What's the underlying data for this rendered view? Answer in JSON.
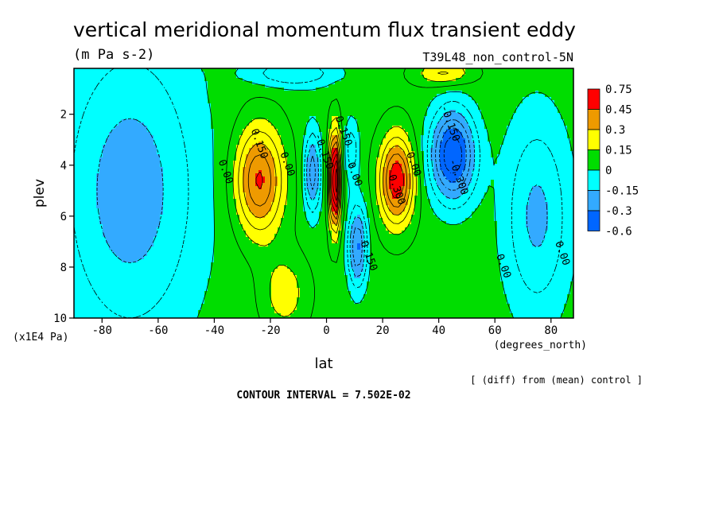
{
  "chart_data": {
    "type": "contour",
    "title": "vertical meridional momentum flux transient eddy",
    "units": "(m Pa s-2)",
    "run_label": "T39L48_non_control-5N",
    "xlabel": "lat",
    "x_units": "(degrees_north)",
    "ylabel": "plev",
    "y_units": "(x1E4 Pa)",
    "xlim": [
      -90,
      88
    ],
    "ylim": [
      10,
      0.2
    ],
    "x_ticks": [
      -80,
      -60,
      -40,
      -20,
      0,
      20,
      40,
      60,
      80
    ],
    "y_ticks": [
      2,
      4,
      6,
      8,
      10
    ],
    "diff_note": "[ (diff) from (mean) control ]",
    "contour_interval": "CONTOUR INTERVAL = 7.502E-02",
    "legend": {
      "levels": [
        "0.75",
        "0.45",
        "0.3",
        "0.15",
        "0",
        "-0.15",
        "-0.3",
        "-0.6"
      ],
      "colors": [
        "#ff0000",
        "#ee9a00",
        "#ffff00",
        "#00dd00",
        "#00ffff",
        "#33aaff",
        "#0066ff"
      ]
    },
    "contour_labels": [
      {
        "text": "0.00",
        "lat": -37,
        "plev": 4.3
      },
      {
        "text": "0.150",
        "lat": -25,
        "plev": 3.2
      },
      {
        "text": "0.00",
        "lat": -15,
        "plev": 4.0
      },
      {
        "text": "-0.150",
        "lat": -2,
        "plev": 3.5
      },
      {
        "text": "0.150",
        "lat": 5,
        "plev": 2.7
      },
      {
        "text": "0.00",
        "lat": 9,
        "plev": 4.4
      },
      {
        "text": "0.150",
        "lat": 14,
        "plev": 7.6
      },
      {
        "text": "0.300",
        "lat": 24,
        "plev": 5.0
      },
      {
        "text": "0.00",
        "lat": 30,
        "plev": 4.0
      },
      {
        "text": "-0.150",
        "lat": 43,
        "plev": 2.4
      },
      {
        "text": "-0.300",
        "lat": 46,
        "plev": 4.5
      },
      {
        "text": "0.00",
        "lat": 62,
        "plev": 8.0
      },
      {
        "text": "0.00",
        "lat": 83,
        "plev": 7.5
      }
    ],
    "field_blobs": [
      {
        "lat": -24,
        "plev": 4.6,
        "wlat": 8.5,
        "wp": 2.1,
        "amp": 0.42
      },
      {
        "lat": -5,
        "plev": 4.3,
        "wlat": 3.0,
        "wp": 1.6,
        "amp": -0.33
      },
      {
        "lat": 3,
        "plev": 4.6,
        "wlat": 2.0,
        "wp": 1.8,
        "amp": 0.72
      },
      {
        "lat": 11,
        "plev": 7.2,
        "wlat": 3.4,
        "wp": 1.6,
        "amp": -0.36
      },
      {
        "lat": 9,
        "plev": 3.4,
        "wlat": 2.6,
        "wp": 1.2,
        "amp": -0.18
      },
      {
        "lat": 25,
        "plev": 4.6,
        "wlat": 6.0,
        "wp": 1.7,
        "amp": 0.48
      },
      {
        "lat": 45,
        "plev": 3.6,
        "wlat": 8.0,
        "wp": 1.8,
        "amp": -0.5
      },
      {
        "lat": -12,
        "plev": 0.4,
        "wlat": 16,
        "wp": 0.55,
        "amp": -0.2
      },
      {
        "lat": 42,
        "plev": 0.4,
        "wlat": 10,
        "wp": 0.5,
        "amp": 0.2
      },
      {
        "lat": -70,
        "plev": 5.0,
        "wlat": 25,
        "wp": 6.0,
        "amp": -0.25
      },
      {
        "lat": 75,
        "plev": 6.0,
        "wlat": 12,
        "wp": 4.0,
        "amp": -0.22
      },
      {
        "lat": -15,
        "plev": 9.0,
        "wlat": 8,
        "wp": 1.5,
        "amp": 0.15
      }
    ]
  }
}
